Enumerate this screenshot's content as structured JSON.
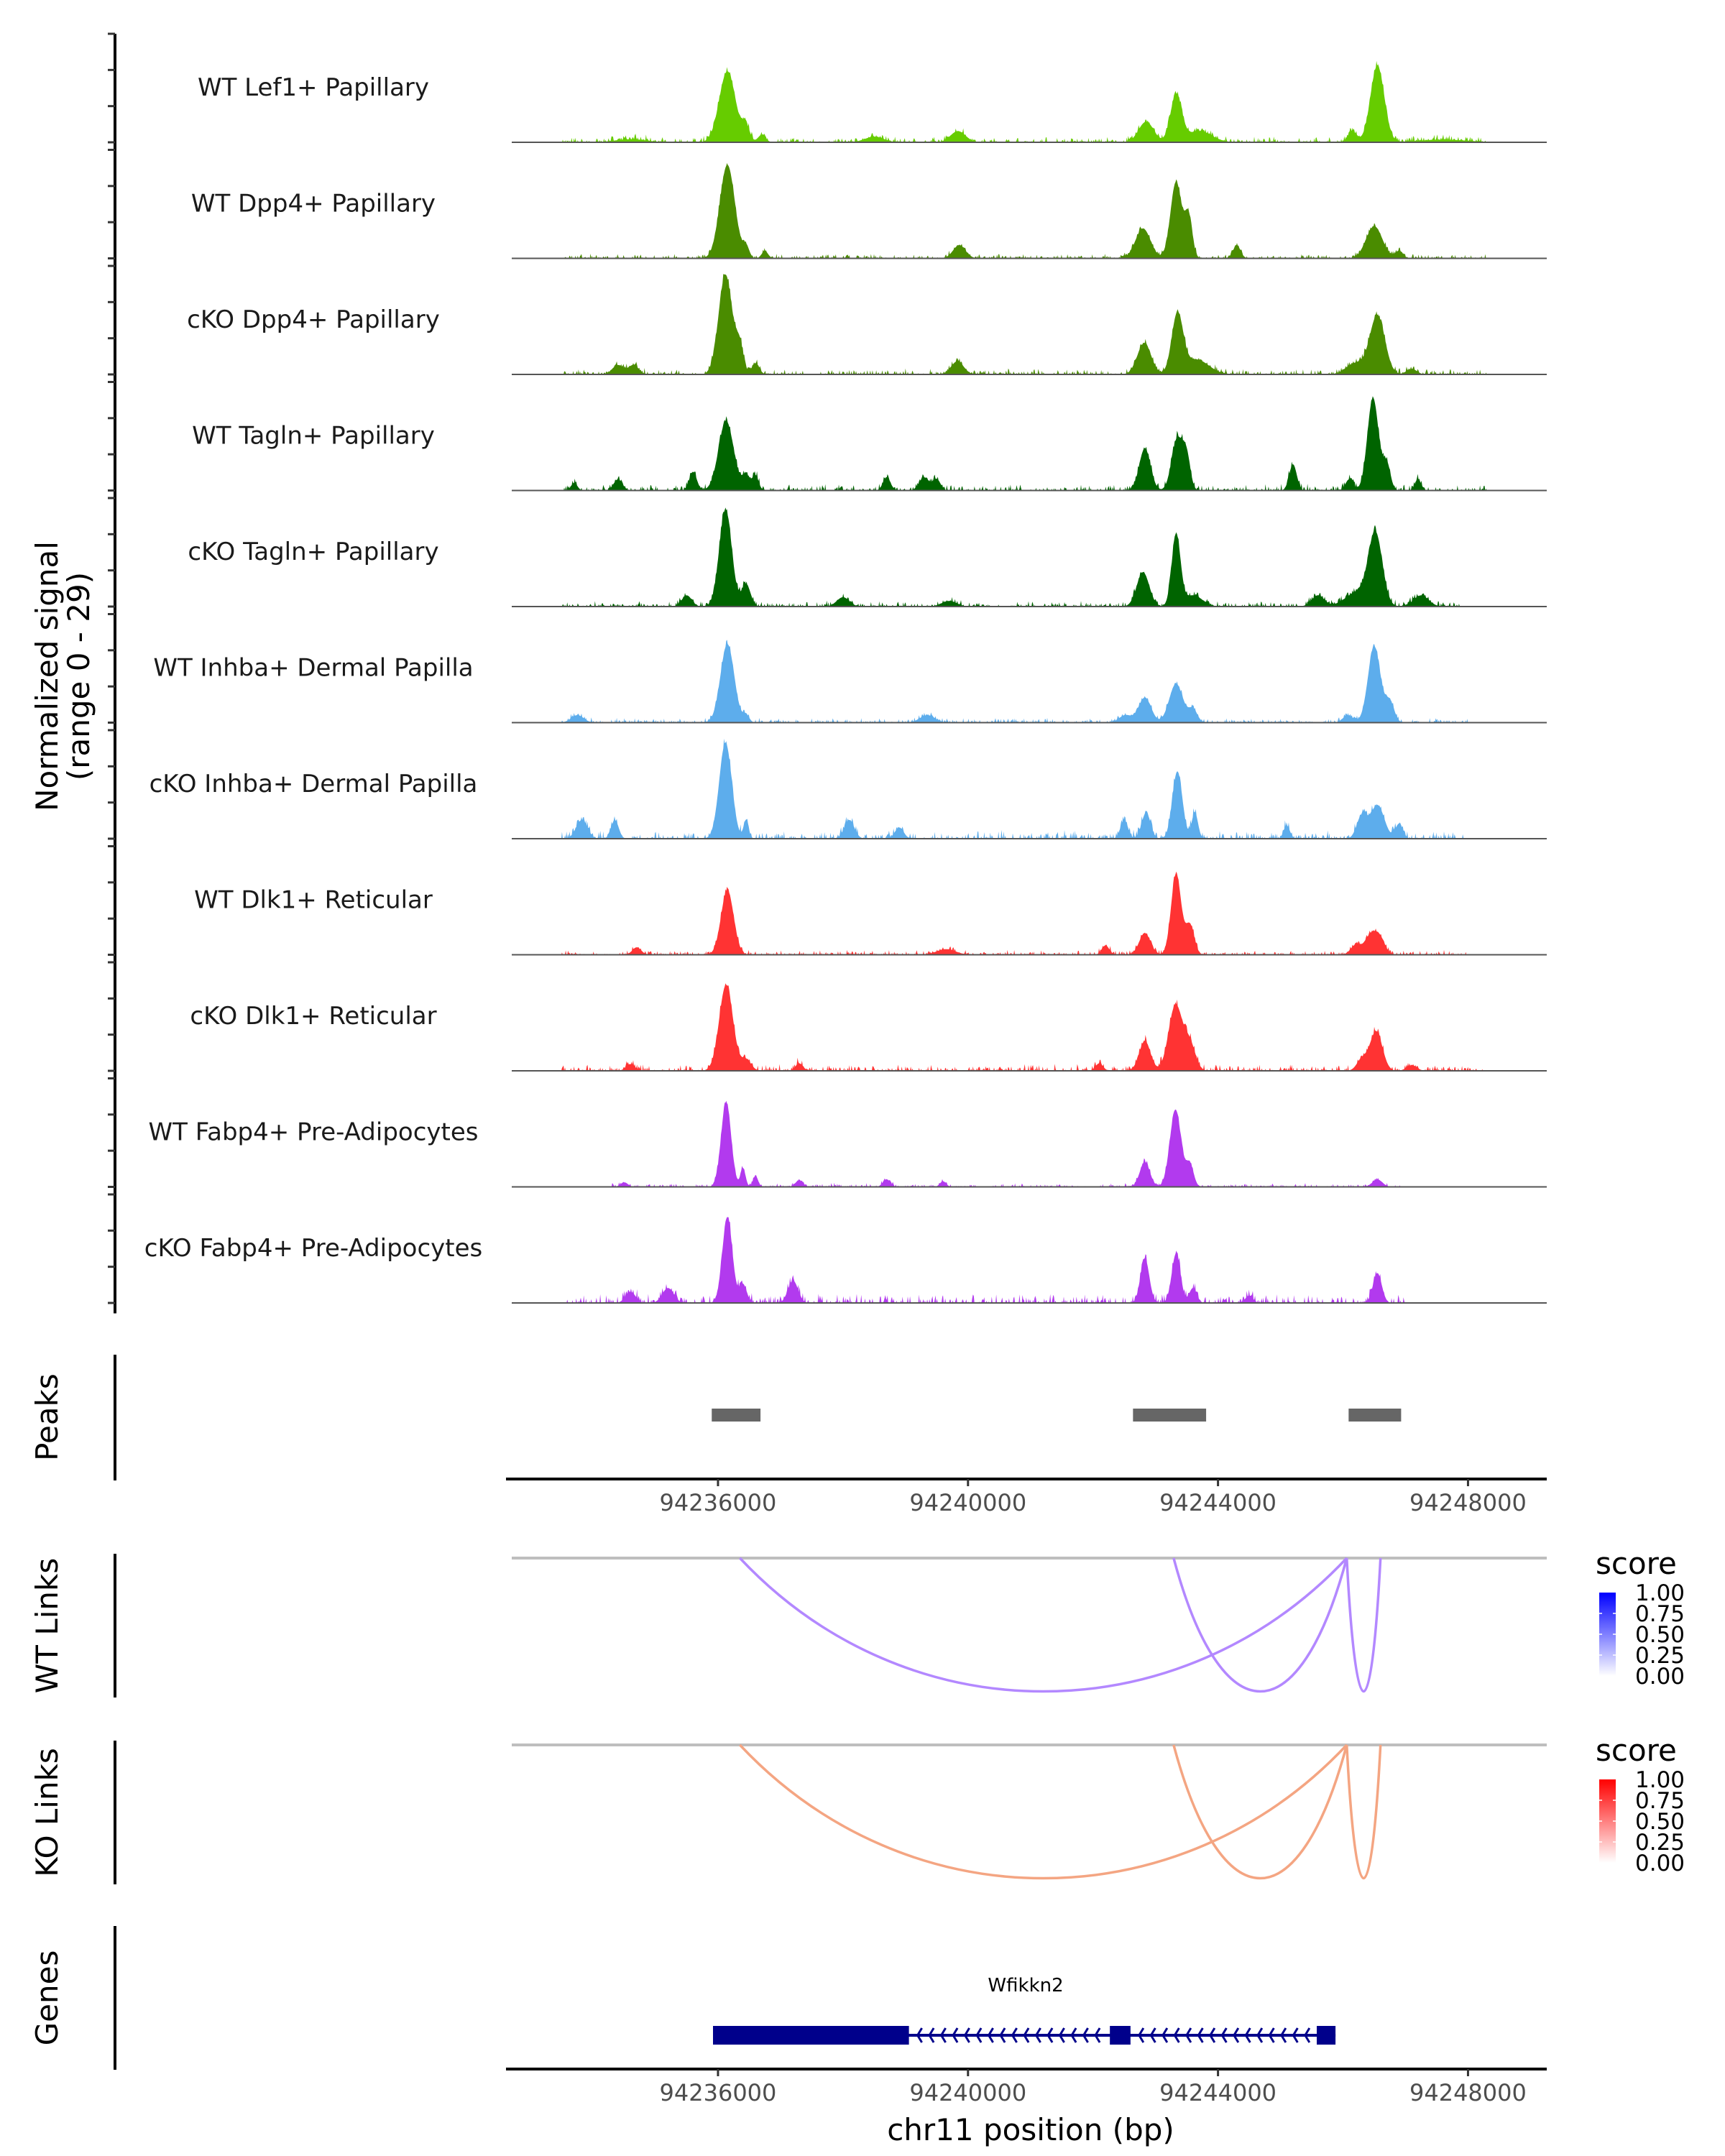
{
  "chart_data": {
    "type": "area",
    "title": "",
    "chromosome": "chr11",
    "xlabel": "chr11 position (bp)",
    "xlim": [
      94232700,
      94249260
    ],
    "xticks": [
      94236000,
      94240000,
      94244000,
      94248000
    ],
    "xtick_labels": [
      "94236000",
      "94240000",
      "94244000",
      "94248000"
    ],
    "coverage": {
      "ylabel_line1": "Normalized signal",
      "ylabel_line2": "(range 0 - 29)",
      "ylim": [
        0,
        29
      ],
      "tracks": [
        {
          "name": "WT Lef1+ Papillary",
          "color": "#66CC00",
          "peaks": [
            [
              94234600,
              250,
              0.8
            ],
            [
              94236150,
              130,
              19
            ],
            [
              94236450,
              60,
              4
            ],
            [
              94236700,
              60,
              2
            ],
            [
              94238500,
              150,
              1.5
            ],
            [
              94239840,
              120,
              3
            ],
            [
              94242850,
              120,
              5.5
            ],
            [
              94243330,
              90,
              12.5
            ],
            [
              94243700,
              200,
              3
            ],
            [
              94246550,
              110,
              20.5
            ],
            [
              94246150,
              70,
              3
            ],
            [
              94247600,
              400,
              0.7
            ]
          ],
          "noise": 0.6,
          "noise_start": 94233500,
          "noise_end": 94248300
        },
        {
          "name": "WT Dpp4+ Papillary",
          "color": "#4A8C00",
          "peaks": [
            [
              94236150,
              120,
              25
            ],
            [
              94236450,
              50,
              3
            ],
            [
              94236750,
              50,
              2
            ],
            [
              94239860,
              100,
              3.5
            ],
            [
              94242800,
              120,
              8
            ],
            [
              94243330,
              90,
              20.5
            ],
            [
              94243530,
              60,
              11
            ],
            [
              94244300,
              60,
              3.5
            ],
            [
              94246500,
              130,
              8.6
            ],
            [
              94246900,
              60,
              2
            ]
          ],
          "noise": 0.5,
          "noise_start": 94233500,
          "noise_end": 94248300
        },
        {
          "name": "cKO Dpp4+ Papillary",
          "color": "#4A8C00",
          "peaks": [
            [
              94234400,
              90,
              2.5
            ],
            [
              94234650,
              80,
              2.5
            ],
            [
              94236120,
              110,
              26.7
            ],
            [
              94236350,
              60,
              7
            ],
            [
              94236600,
              60,
              3
            ],
            [
              94239830,
              100,
              3.5
            ],
            [
              94242820,
              110,
              8.4
            ],
            [
              94243350,
              90,
              15.5
            ],
            [
              94243650,
              200,
              4
            ],
            [
              94246550,
              120,
              15.7
            ],
            [
              94246200,
              150,
              3
            ],
            [
              94247100,
              80,
              1.5
            ]
          ],
          "noise": 0.6,
          "noise_start": 94233500,
          "noise_end": 94248300
        },
        {
          "name": "WT Tagln+ Papillary",
          "color": "#006400",
          "peaks": [
            [
              94233700,
              50,
              2
            ],
            [
              94234400,
              70,
              3
            ],
            [
              94235600,
              60,
              5
            ],
            [
              94236130,
              120,
              18.6
            ],
            [
              94236450,
              60,
              4
            ],
            [
              94236600,
              50,
              4
            ],
            [
              94238700,
              60,
              3.5
            ],
            [
              94239300,
              80,
              3.5
            ],
            [
              94239500,
              60,
              3
            ],
            [
              94242830,
              90,
              11.3
            ],
            [
              94243350,
              90,
              14
            ],
            [
              94243500,
              60,
              8
            ],
            [
              94245200,
              60,
              7
            ],
            [
              94246100,
              60,
              3
            ],
            [
              94246480,
              90,
              24.8
            ],
            [
              94246700,
              60,
              7
            ],
            [
              94247200,
              50,
              3
            ]
          ],
          "noise": 0.7,
          "noise_start": 94233500,
          "noise_end": 94248300
        },
        {
          "name": "cKO Tagln+ Papillary",
          "color": "#006400",
          "peaks": [
            [
              94235500,
              80,
              3
            ],
            [
              94236120,
              100,
              26
            ],
            [
              94236450,
              70,
              6
            ],
            [
              94238000,
              100,
              2.5
            ],
            [
              94239700,
              120,
              1.5
            ],
            [
              94242800,
              100,
              9.2
            ],
            [
              94243330,
              70,
              19
            ],
            [
              94243600,
              150,
              3
            ],
            [
              94245600,
              100,
              3
            ],
            [
              94246520,
              110,
              18.6
            ],
            [
              94246250,
              200,
              4
            ],
            [
              94247250,
              120,
              3
            ]
          ],
          "noise": 0.6,
          "noise_start": 94233500,
          "noise_end": 94247900
        },
        {
          "name": "WT Inhba+ Dermal Papilla",
          "color": "#5DADEC",
          "peaks": [
            [
              94233750,
              100,
              2
            ],
            [
              94236150,
              110,
              21
            ],
            [
              94236450,
              50,
              2
            ],
            [
              94239350,
              120,
              2
            ],
            [
              94242520,
              100,
              2
            ],
            [
              94242830,
              100,
              6.7
            ],
            [
              94243330,
              110,
              10.4
            ],
            [
              94243600,
              70,
              3.5
            ],
            [
              94246080,
              80,
              2
            ],
            [
              94246500,
              100,
              20.4
            ],
            [
              94246750,
              70,
              5.5
            ]
          ],
          "noise": 0.5,
          "noise_start": 94233500,
          "noise_end": 94248000
        },
        {
          "name": "cKO Inhba+ Dermal Papilla",
          "color": "#5DADEC",
          "peaks": [
            [
              94233820,
              90,
              5
            ],
            [
              94234350,
              60,
              5
            ],
            [
              94236120,
              100,
              25.7
            ],
            [
              94236450,
              40,
              5
            ],
            [
              94238100,
              80,
              5
            ],
            [
              94238900,
              70,
              3
            ],
            [
              94242500,
              60,
              5
            ],
            [
              94242850,
              70,
              7
            ],
            [
              94243350,
              80,
              18
            ],
            [
              94243630,
              50,
              7
            ],
            [
              94245100,
              50,
              3.5
            ],
            [
              94246300,
              80,
              6
            ],
            [
              94246550,
              110,
              9
            ],
            [
              94246900,
              60,
              4
            ]
          ],
          "noise": 0.9,
          "noise_start": 94233500,
          "noise_end": 94248000
        },
        {
          "name": "WT Dlk1+ Reticular",
          "color": "#FF3333",
          "peaks": [
            [
              94234700,
              70,
              2
            ],
            [
              94236150,
              100,
              17.3
            ],
            [
              94239650,
              150,
              1.5
            ],
            [
              94242200,
              60,
              2.5
            ],
            [
              94242830,
              90,
              5.8
            ],
            [
              94243330,
              80,
              21.7
            ],
            [
              94243550,
              70,
              8
            ],
            [
              94246450,
              100,
              5.4
            ],
            [
              94246200,
              80,
              2.5
            ],
            [
              94246600,
              80,
              3.5
            ]
          ],
          "noise": 0.5,
          "noise_start": 94233500,
          "noise_end": 94248000
        },
        {
          "name": "cKO Dlk1+ Reticular",
          "color": "#FF3333",
          "peaks": [
            [
              94234600,
              70,
              1.8
            ],
            [
              94236130,
              110,
              23
            ],
            [
              94236450,
              80,
              3
            ],
            [
              94237300,
              60,
              2
            ],
            [
              94242100,
              60,
              2
            ],
            [
              94242830,
              90,
              8
            ],
            [
              94243320,
              110,
              17.5
            ],
            [
              94243550,
              90,
              7
            ],
            [
              94246530,
              100,
              10.6
            ],
            [
              94246300,
              80,
              3
            ],
            [
              94247100,
              80,
              1.5
            ]
          ],
          "noise": 0.7,
          "noise_start": 94233500,
          "noise_end": 94248300
        },
        {
          "name": "WT Fabp4+ Pre-Adipocytes",
          "color": "#B23AEE",
          "peaks": [
            [
              94236130,
              80,
              22.7
            ],
            [
              94236400,
              40,
              5
            ],
            [
              94236600,
              40,
              3
            ],
            [
              94234500,
              60,
              1.2
            ],
            [
              94237300,
              60,
              1.8
            ],
            [
              94238700,
              60,
              2
            ],
            [
              94239600,
              50,
              1.5
            ],
            [
              94242830,
              80,
              6.7
            ],
            [
              94243320,
              90,
              20.7
            ],
            [
              94243550,
              60,
              6
            ],
            [
              94246550,
              80,
              2
            ]
          ],
          "noise": 0.4,
          "noise_start": 94234300,
          "noise_end": 94247000
        },
        {
          "name": "cKO Fabp4+ Pre-Adipocytes",
          "color": "#B23AEE",
          "peaks": [
            [
              94236150,
              80,
              23
            ],
            [
              94236400,
              60,
              5
            ],
            [
              94237200,
              80,
              6
            ],
            [
              94235200,
              90,
              4
            ],
            [
              94234600,
              80,
              3
            ],
            [
              94242830,
              70,
              12
            ],
            [
              94243330,
              70,
              13.2
            ],
            [
              94243600,
              60,
              4
            ],
            [
              94246550,
              70,
              8
            ],
            [
              94244500,
              60,
              2
            ]
          ],
          "noise": 1.0,
          "noise_start": 94233500,
          "noise_end": 94247000
        }
      ]
    },
    "peaks_track": {
      "label": "Peaks",
      "color": "#666666",
      "regions": [
        [
          94235900,
          94236680
        ],
        [
          94242640,
          94243810
        ],
        [
          94246090,
          94246930
        ]
      ]
    },
    "links_tracks": [
      {
        "label": "WT Links",
        "color_low": "#FFFFFF",
        "color_high": "#0000FF",
        "line_color": "#B388FF",
        "legend_title": "score",
        "legend_ticks": [
          "1.00",
          "0.75",
          "0.50",
          "0.25",
          "0.00"
        ],
        "links": [
          {
            "start": 94236350,
            "end": 94246060,
            "score": 0.45
          },
          {
            "start": 94243290,
            "end": 94246060,
            "score": 0.45
          },
          {
            "start": 94246060,
            "end": 94246600,
            "score": 0.45
          }
        ]
      },
      {
        "label": "KO Links",
        "color_low": "#FFFFFF",
        "color_high": "#FF0000",
        "line_color": "#F4A582",
        "legend_title": "score",
        "legend_ticks": [
          "1.00",
          "0.75",
          "0.50",
          "0.25",
          "0.00"
        ],
        "links": [
          {
            "start": 94236350,
            "end": 94246060,
            "score": 0.45
          },
          {
            "start": 94243290,
            "end": 94246060,
            "score": 0.45
          },
          {
            "start": 94246060,
            "end": 94246600,
            "score": 0.45
          }
        ]
      }
    ],
    "genes_track": {
      "label": "Genes",
      "color": "#00008B",
      "genes": [
        {
          "name": "Wfikkn2",
          "strand": "-",
          "start": 94235920,
          "end": 94245880,
          "exons": [
            [
              94235920,
              94239055
            ],
            [
              94242270,
              94242600
            ],
            [
              94245580,
              94245880
            ]
          ]
        }
      ]
    }
  }
}
